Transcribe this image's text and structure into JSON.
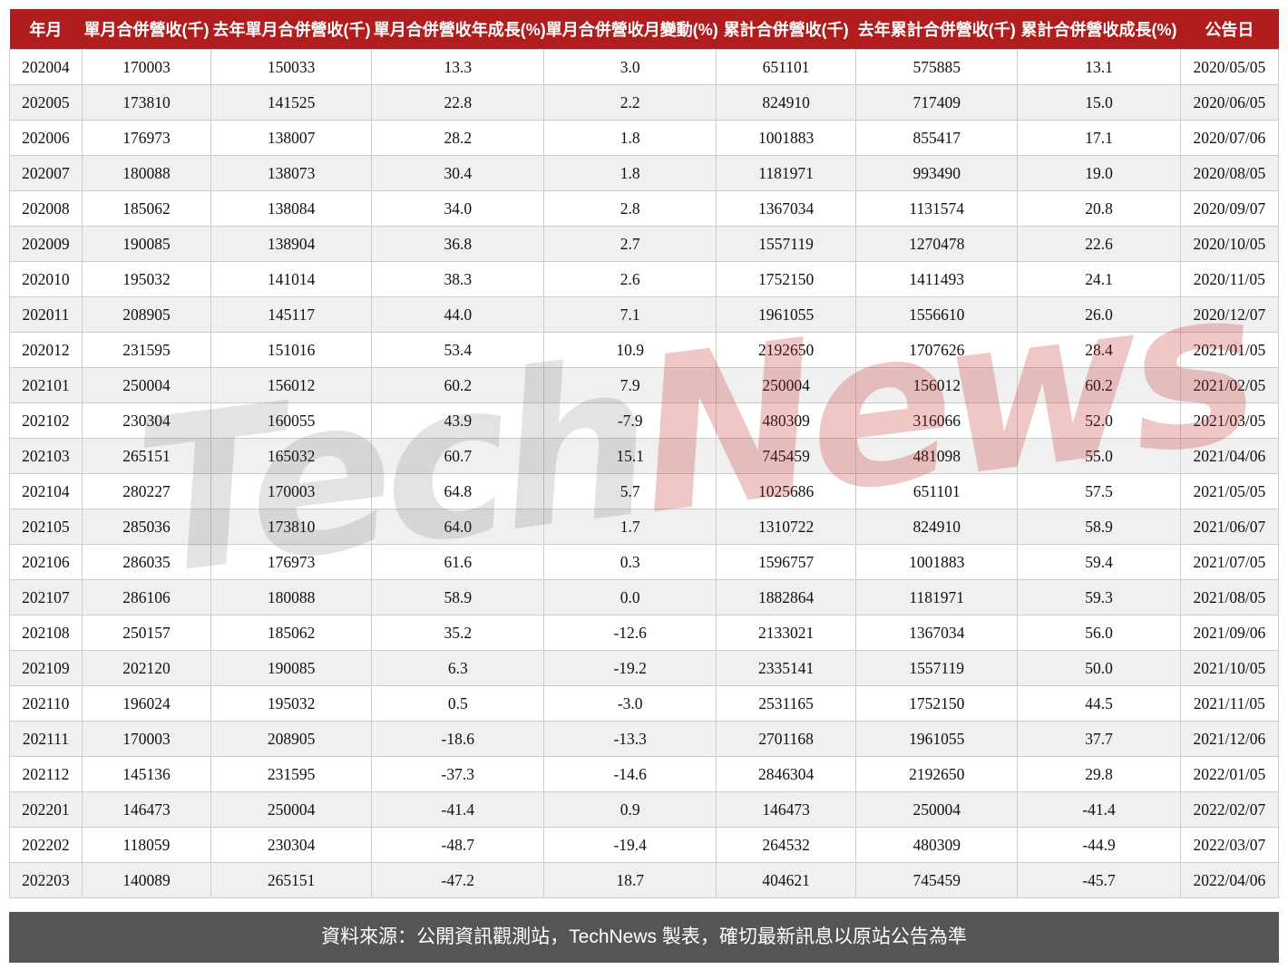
{
  "chart_data": {
    "type": "table",
    "columns": [
      "年月",
      "單月合併營收(千)",
      "去年單月合併營收(千)",
      "單月合併營收年成長(%)",
      "單月合併營收月變動(%)",
      "累計合併營收(千)",
      "去年累計合併營收(千)",
      "累計合併營收成長(%)",
      "公告日"
    ],
    "rows": [
      [
        "202004",
        "170003",
        "150033",
        "13.3",
        "3.0",
        "651101",
        "575885",
        "13.1",
        "2020/05/05"
      ],
      [
        "202005",
        "173810",
        "141525",
        "22.8",
        "2.2",
        "824910",
        "717409",
        "15.0",
        "2020/06/05"
      ],
      [
        "202006",
        "176973",
        "138007",
        "28.2",
        "1.8",
        "1001883",
        "855417",
        "17.1",
        "2020/07/06"
      ],
      [
        "202007",
        "180088",
        "138073",
        "30.4",
        "1.8",
        "1181971",
        "993490",
        "19.0",
        "2020/08/05"
      ],
      [
        "202008",
        "185062",
        "138084",
        "34.0",
        "2.8",
        "1367034",
        "1131574",
        "20.8",
        "2020/09/07"
      ],
      [
        "202009",
        "190085",
        "138904",
        "36.8",
        "2.7",
        "1557119",
        "1270478",
        "22.6",
        "2020/10/05"
      ],
      [
        "202010",
        "195032",
        "141014",
        "38.3",
        "2.6",
        "1752150",
        "1411493",
        "24.1",
        "2020/11/05"
      ],
      [
        "202011",
        "208905",
        "145117",
        "44.0",
        "7.1",
        "1961055",
        "1556610",
        "26.0",
        "2020/12/07"
      ],
      [
        "202012",
        "231595",
        "151016",
        "53.4",
        "10.9",
        "2192650",
        "1707626",
        "28.4",
        "2021/01/05"
      ],
      [
        "202101",
        "250004",
        "156012",
        "60.2",
        "7.9",
        "250004",
        "156012",
        "60.2",
        "2021/02/05"
      ],
      [
        "202102",
        "230304",
        "160055",
        "43.9",
        "-7.9",
        "480309",
        "316066",
        "52.0",
        "2021/03/05"
      ],
      [
        "202103",
        "265151",
        "165032",
        "60.7",
        "15.1",
        "745459",
        "481098",
        "55.0",
        "2021/04/06"
      ],
      [
        "202104",
        "280227",
        "170003",
        "64.8",
        "5.7",
        "1025686",
        "651101",
        "57.5",
        "2021/05/05"
      ],
      [
        "202105",
        "285036",
        "173810",
        "64.0",
        "1.7",
        "1310722",
        "824910",
        "58.9",
        "2021/06/07"
      ],
      [
        "202106",
        "286035",
        "176973",
        "61.6",
        "0.3",
        "1596757",
        "1001883",
        "59.4",
        "2021/07/05"
      ],
      [
        "202107",
        "286106",
        "180088",
        "58.9",
        "0.0",
        "1882864",
        "1181971",
        "59.3",
        "2021/08/05"
      ],
      [
        "202108",
        "250157",
        "185062",
        "35.2",
        "-12.6",
        "2133021",
        "1367034",
        "56.0",
        "2021/09/06"
      ],
      [
        "202109",
        "202120",
        "190085",
        "6.3",
        "-19.2",
        "2335141",
        "1557119",
        "50.0",
        "2021/10/05"
      ],
      [
        "202110",
        "196024",
        "195032",
        "0.5",
        "-3.0",
        "2531165",
        "1752150",
        "44.5",
        "2021/11/05"
      ],
      [
        "202111",
        "170003",
        "208905",
        "-18.6",
        "-13.3",
        "2701168",
        "1961055",
        "37.7",
        "2021/12/06"
      ],
      [
        "202112",
        "145136",
        "231595",
        "-37.3",
        "-14.6",
        "2846304",
        "2192650",
        "29.8",
        "2022/01/05"
      ],
      [
        "202201",
        "146473",
        "250004",
        "-41.4",
        "0.9",
        "146473",
        "250004",
        "-41.4",
        "2022/02/07"
      ],
      [
        "202202",
        "118059",
        "230304",
        "-48.7",
        "-19.4",
        "264532",
        "480309",
        "-44.9",
        "2022/03/07"
      ],
      [
        "202203",
        "140089",
        "265151",
        "-47.2",
        "18.7",
        "404621",
        "745459",
        "-45.7",
        "2022/04/06"
      ]
    ]
  },
  "watermark": {
    "part1": "Tech",
    "part2": "News"
  },
  "footer": {
    "text": "資料來源：公開資訊觀測站，TechNews 製表，確切最新訊息以原站公告為準"
  },
  "colors": {
    "header_bg": "#b11d1d",
    "footer_bg": "#555555",
    "row_alt": "#f0f0f0",
    "cell_border": "#cccccc",
    "watermark_red": "#c02626",
    "watermark_gray": "#3c3c3c"
  }
}
